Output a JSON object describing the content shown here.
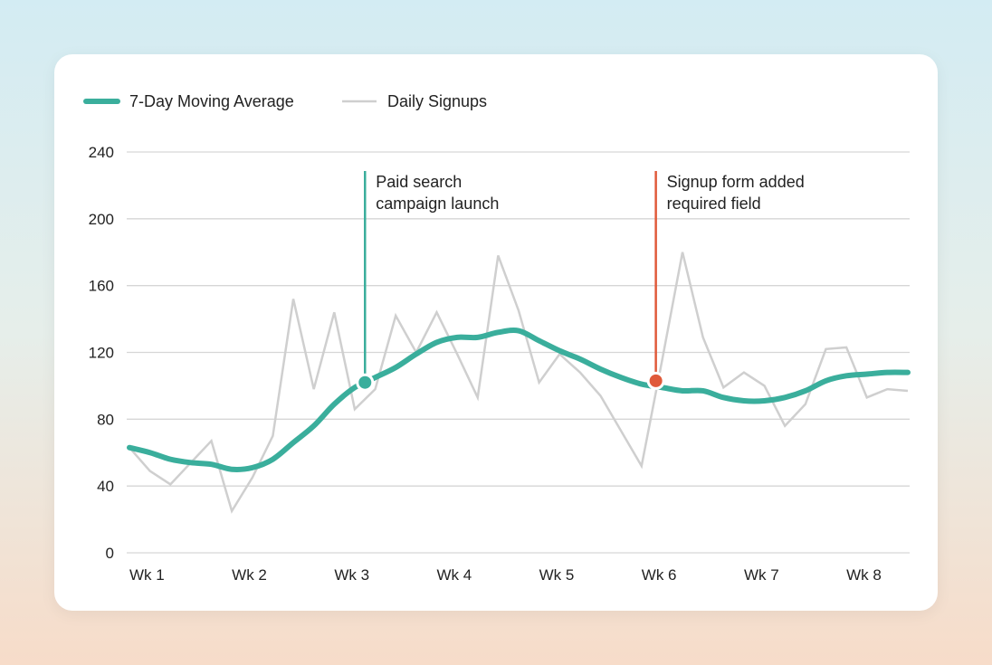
{
  "chart_data": {
    "type": "line",
    "title": "",
    "xlabel": "",
    "ylabel": "",
    "ylim": [
      0,
      240
    ],
    "yticks": [
      0,
      40,
      80,
      120,
      160,
      200,
      240
    ],
    "xlim": [
      0,
      38
    ],
    "xticks": [
      {
        "x": 0,
        "label": "Wk 1"
      },
      {
        "x": 5,
        "label": "Wk 2"
      },
      {
        "x": 10,
        "label": "Wk 3"
      },
      {
        "x": 15,
        "label": "Wk 4"
      },
      {
        "x": 20,
        "label": "Wk 5"
      },
      {
        "x": 25,
        "label": "Wk 6"
      },
      {
        "x": 30,
        "label": "Wk 7"
      },
      {
        "x": 35,
        "label": "Wk 8"
      }
    ],
    "grid": true,
    "legend_position": "top-left",
    "series": [
      {
        "name": "7-Day Moving Average",
        "color": "#3aae9c",
        "values": [
          63,
          60,
          56,
          54,
          53,
          50,
          51,
          56,
          66,
          76,
          89,
          99,
          105,
          111,
          119,
          126,
          129,
          129,
          132,
          133,
          127,
          121,
          116,
          110,
          105,
          101,
          99,
          97,
          97,
          93,
          91,
          91,
          93,
          97,
          103,
          106,
          107,
          108,
          108
        ]
      },
      {
        "name": "Daily Signups",
        "color": "#cfcfcf",
        "values": [
          63,
          49,
          41,
          54,
          67,
          25,
          45,
          70,
          152,
          98,
          144,
          86,
          98,
          142,
          120,
          144,
          119,
          93,
          178,
          145,
          102,
          119,
          108,
          94,
          73,
          52,
          115,
          180,
          129,
          99,
          108,
          100,
          76,
          89,
          122,
          123,
          93,
          98,
          97
        ]
      }
    ],
    "annotations": [
      {
        "x": 11.5,
        "y": 102,
        "color": "#3aae9c",
        "lines": [
          "Paid search",
          "campaign launch"
        ]
      },
      {
        "x": 25.7,
        "y": 103,
        "color": "#e05a3a",
        "lines": [
          "Signup form added",
          "required field"
        ]
      }
    ]
  }
}
